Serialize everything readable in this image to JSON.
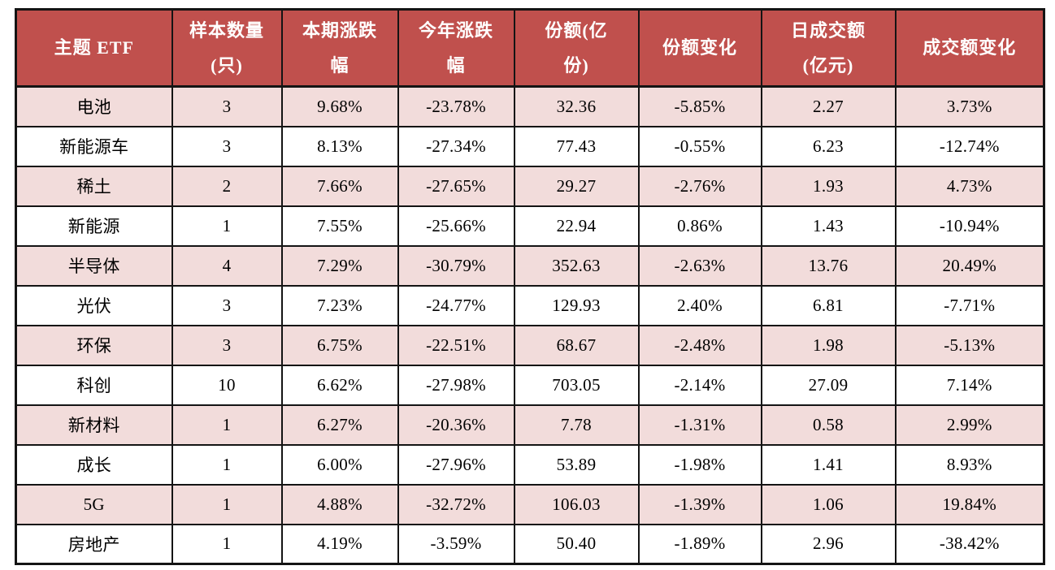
{
  "chart_data": {
    "type": "table",
    "columns": [
      "主题 ETF",
      "样本数量(只)",
      "本期涨跌幅",
      "今年涨跌幅",
      "份额(亿份)",
      "份额变化",
      "日成交额(亿元)",
      "成交额变化"
    ],
    "rows": [
      [
        "电池",
        "3",
        "9.68%",
        "-23.78%",
        "32.36",
        "-5.85%",
        "2.27",
        "3.73%"
      ],
      [
        "新能源车",
        "3",
        "8.13%",
        "-27.34%",
        "77.43",
        "-0.55%",
        "6.23",
        "-12.74%"
      ],
      [
        "稀土",
        "2",
        "7.66%",
        "-27.65%",
        "29.27",
        "-2.76%",
        "1.93",
        "4.73%"
      ],
      [
        "新能源",
        "1",
        "7.55%",
        "-25.66%",
        "22.94",
        "0.86%",
        "1.43",
        "-10.94%"
      ],
      [
        "半导体",
        "4",
        "7.29%",
        "-30.79%",
        "352.63",
        "-2.63%",
        "13.76",
        "20.49%"
      ],
      [
        "光伏",
        "3",
        "7.23%",
        "-24.77%",
        "129.93",
        "2.40%",
        "6.81",
        "-7.71%"
      ],
      [
        "环保",
        "3",
        "6.75%",
        "-22.51%",
        "68.67",
        "-2.48%",
        "1.98",
        "-5.13%"
      ],
      [
        "科创",
        "10",
        "6.62%",
        "-27.98%",
        "703.05",
        "-2.14%",
        "27.09",
        "7.14%"
      ],
      [
        "新材料",
        "1",
        "6.27%",
        "-20.36%",
        "7.78",
        "-1.31%",
        "0.58",
        "2.99%"
      ],
      [
        "成长",
        "1",
        "6.00%",
        "-27.96%",
        "53.89",
        "-1.98%",
        "1.41",
        "8.93%"
      ],
      [
        "5G",
        "1",
        "4.88%",
        "-32.72%",
        "106.03",
        "-1.39%",
        "1.06",
        "19.84%"
      ],
      [
        "房地产",
        "1",
        "4.19%",
        "-3.59%",
        "50.40",
        "-1.89%",
        "2.96",
        "-38.42%"
      ]
    ],
    "layout_hints": {
      "grid": "on",
      "header_fill": "dark-red",
      "row_striping": "odd rows pink, even rows white"
    }
  },
  "table": {
    "headers": [
      {
        "id": "theme",
        "lines": [
          "主题 ETF"
        ]
      },
      {
        "id": "sample",
        "lines": [
          "样本数量",
          "(只)"
        ]
      },
      {
        "id": "period",
        "lines": [
          "本期涨跌",
          "幅"
        ]
      },
      {
        "id": "ytd",
        "lines": [
          "今年涨跌",
          "幅"
        ]
      },
      {
        "id": "shares",
        "lines": [
          "份额(亿",
          "份)"
        ]
      },
      {
        "id": "sharechg",
        "lines": [
          "份额变化"
        ]
      },
      {
        "id": "turnover",
        "lines": [
          "日成交额",
          "(亿元)"
        ]
      },
      {
        "id": "turnoverchg",
        "lines": [
          "成交额变化"
        ]
      }
    ],
    "colors": {
      "header_bg": "#c0504d",
      "header_text": "#ffffff",
      "row_alt_bg": "#f2dcdb",
      "row_bg": "#ffffff",
      "grid": "#141414",
      "cell_text": "#000000"
    }
  }
}
